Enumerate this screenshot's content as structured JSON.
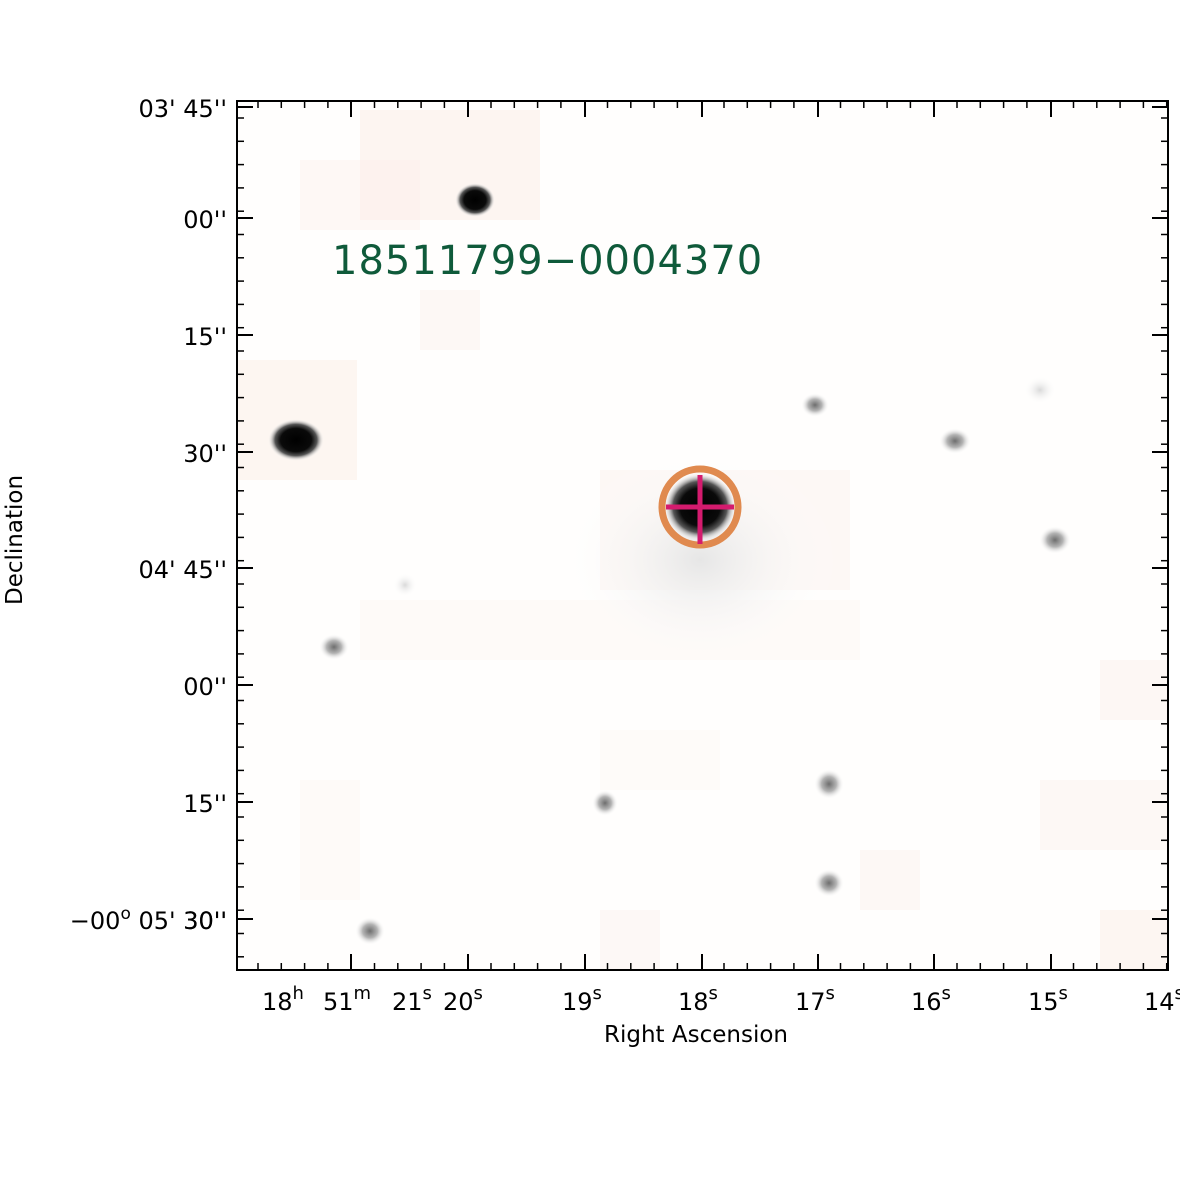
{
  "object_label": "18511799−0004370",
  "axes": {
    "xlabel": "Right Ascension",
    "ylabel": "Declination"
  },
  "ra_ticks": [
    {
      "main": "18",
      "sup": "h"
    },
    {
      "main": "51",
      "sup": "m"
    },
    {
      "main": "21",
      "sup": "s"
    },
    {
      "main": "20",
      "sup": "s"
    },
    {
      "main": "19",
      "sup": "s"
    },
    {
      "main": "18",
      "sup": "s"
    },
    {
      "main": "17",
      "sup": "s"
    },
    {
      "main": "16",
      "sup": "s"
    },
    {
      "main": "15",
      "sup": "s"
    },
    {
      "main": "14",
      "sup": "s"
    }
  ],
  "dec_ticks": [
    {
      "label": "03' 45''"
    },
    {
      "label": "00''"
    },
    {
      "label": "15''"
    },
    {
      "label": "30''"
    },
    {
      "label": "04' 45''"
    },
    {
      "label": "00''"
    },
    {
      "label": "15''"
    },
    {
      "label": "30''"
    },
    {
      "label": "−00",
      "sup": "o",
      "tail": " 05' 30''"
    }
  ],
  "colors": {
    "label": "#0f5a3a",
    "marker_circle": "#e08a4f",
    "marker_cross": "#d41b6e",
    "axis": "#000000"
  },
  "sources": [
    {
      "kind": "bright-star"
    },
    {
      "kind": "bright-star"
    },
    {
      "kind": "target-star"
    },
    {
      "kind": "faint-star"
    },
    {
      "kind": "faint-star"
    },
    {
      "kind": "faint-star"
    },
    {
      "kind": "faint-star"
    },
    {
      "kind": "faint-star"
    },
    {
      "kind": "faint-star"
    },
    {
      "kind": "faint-star"
    },
    {
      "kind": "faint-star"
    },
    {
      "kind": "faint-star"
    },
    {
      "kind": "faint-star"
    }
  ]
}
